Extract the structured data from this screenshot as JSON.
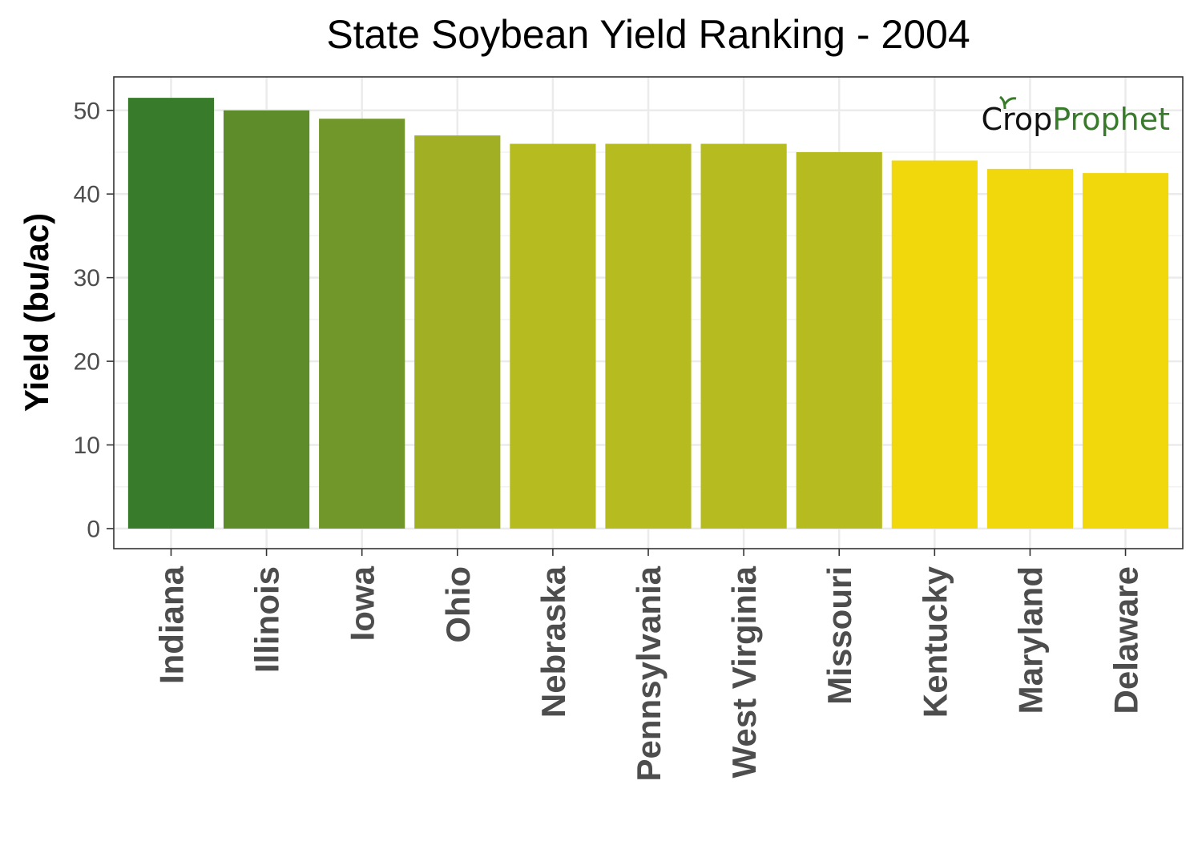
{
  "chart_data": {
    "type": "bar",
    "title": "State Soybean Yield Ranking - 2004",
    "xlabel": "",
    "ylabel": "Yield (bu/ac)",
    "categories": [
      "Indiana",
      "Illinois",
      "Iowa",
      "Ohio",
      "Nebraska",
      "Pennsylvania",
      "West Virginia",
      "Missouri",
      "Kentucky",
      "Maryland",
      "Delaware"
    ],
    "values": [
      51.5,
      50,
      49,
      47,
      46,
      46,
      46,
      45,
      44,
      43,
      42.5
    ],
    "colors": [
      "#387c2b",
      "#5e8c2b",
      "#71962a",
      "#a0af24",
      "#b6bb20",
      "#b6bb20",
      "#b6bb20",
      "#b6bb20",
      "#f0d80c",
      "#f0d80c",
      "#f0d80c"
    ],
    "ylim": [
      -2.4,
      54
    ],
    "yticks": [
      0,
      10,
      20,
      30,
      40,
      50
    ],
    "grid": true,
    "legend": "none"
  },
  "logo": {
    "part1": "Crop",
    "part2": "Prophet",
    "color1": "#111111",
    "color2": "#387c2b"
  }
}
